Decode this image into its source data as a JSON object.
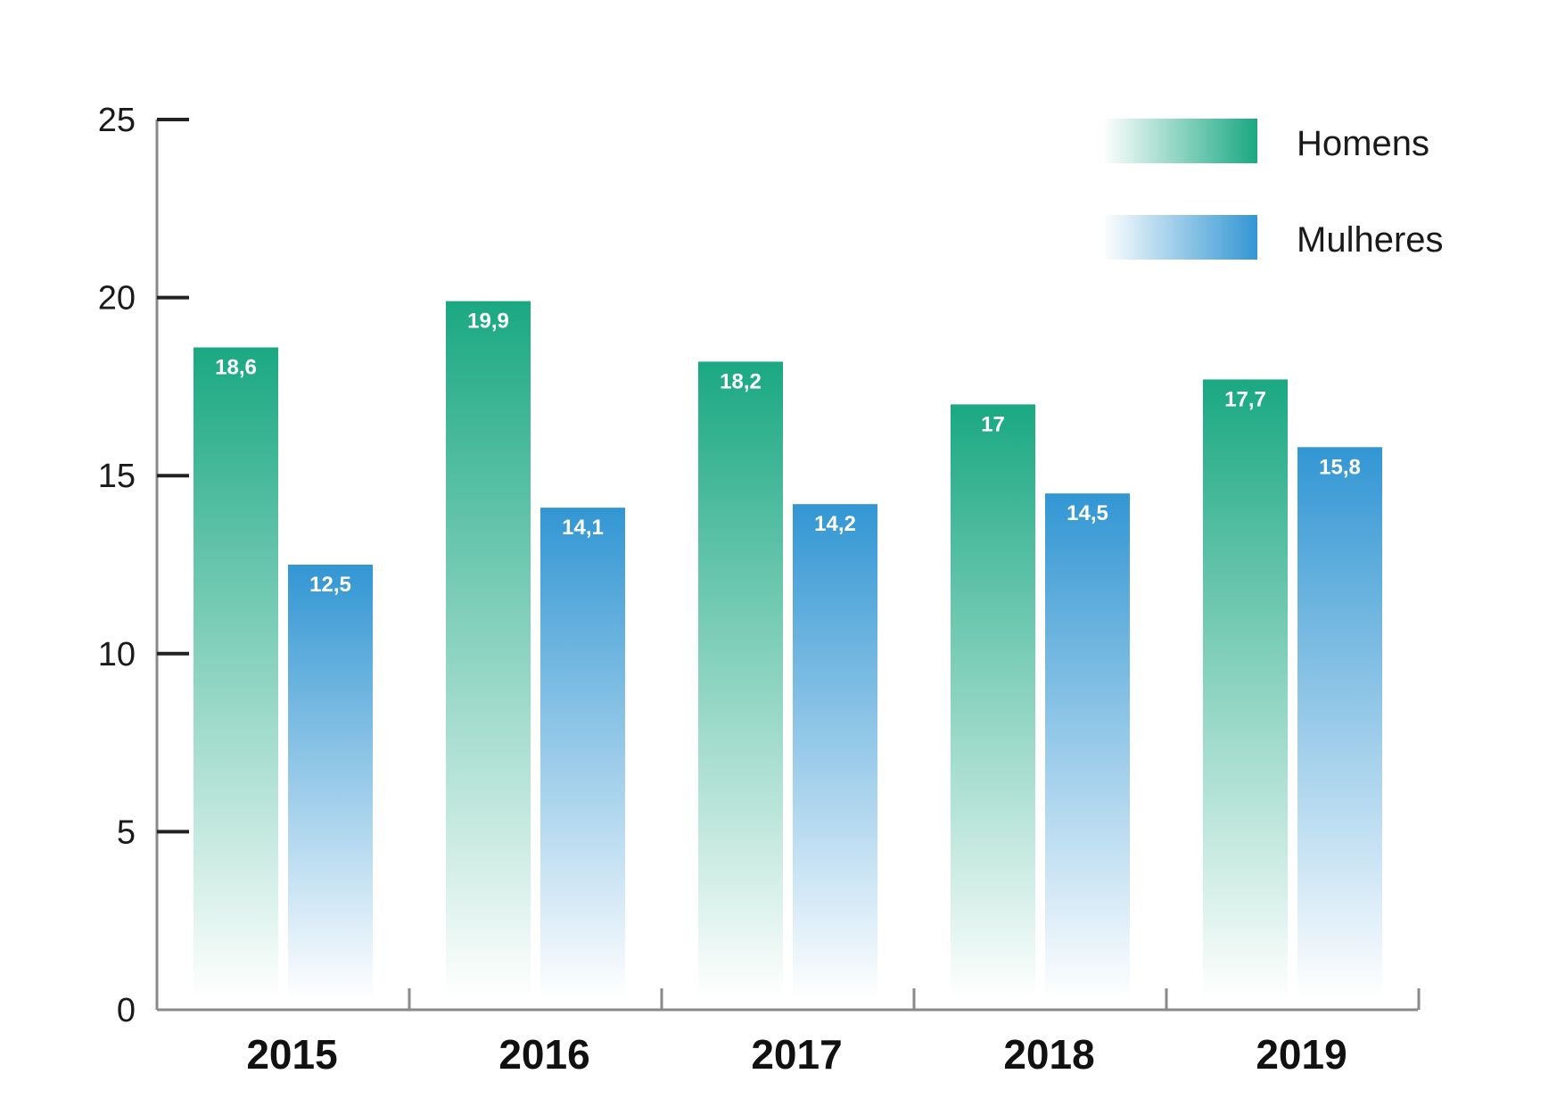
{
  "chart_data": {
    "type": "bar",
    "categories": [
      "2015",
      "2016",
      "2017",
      "2018",
      "2019"
    ],
    "series": [
      {
        "name": "Homens",
        "values": [
          18.6,
          19.9,
          18.2,
          17,
          17.7
        ],
        "labels": [
          "18,6",
          "19,9",
          "18,2",
          "17",
          "17,7"
        ],
        "color": "#1aa882"
      },
      {
        "name": "Mulheres",
        "values": [
          12.5,
          14.1,
          14.2,
          14.5,
          15.8
        ],
        "labels": [
          "12,5",
          "14,1",
          "14,2",
          "14,5",
          "15,8"
        ],
        "color": "#3296d3"
      }
    ],
    "yticks": [
      "0",
      "5",
      "10",
      "15",
      "20",
      "25"
    ],
    "ylim": [
      0,
      25
    ],
    "legend": "top-right",
    "grid": false,
    "title": "",
    "xlabel": "",
    "ylabel": ""
  }
}
